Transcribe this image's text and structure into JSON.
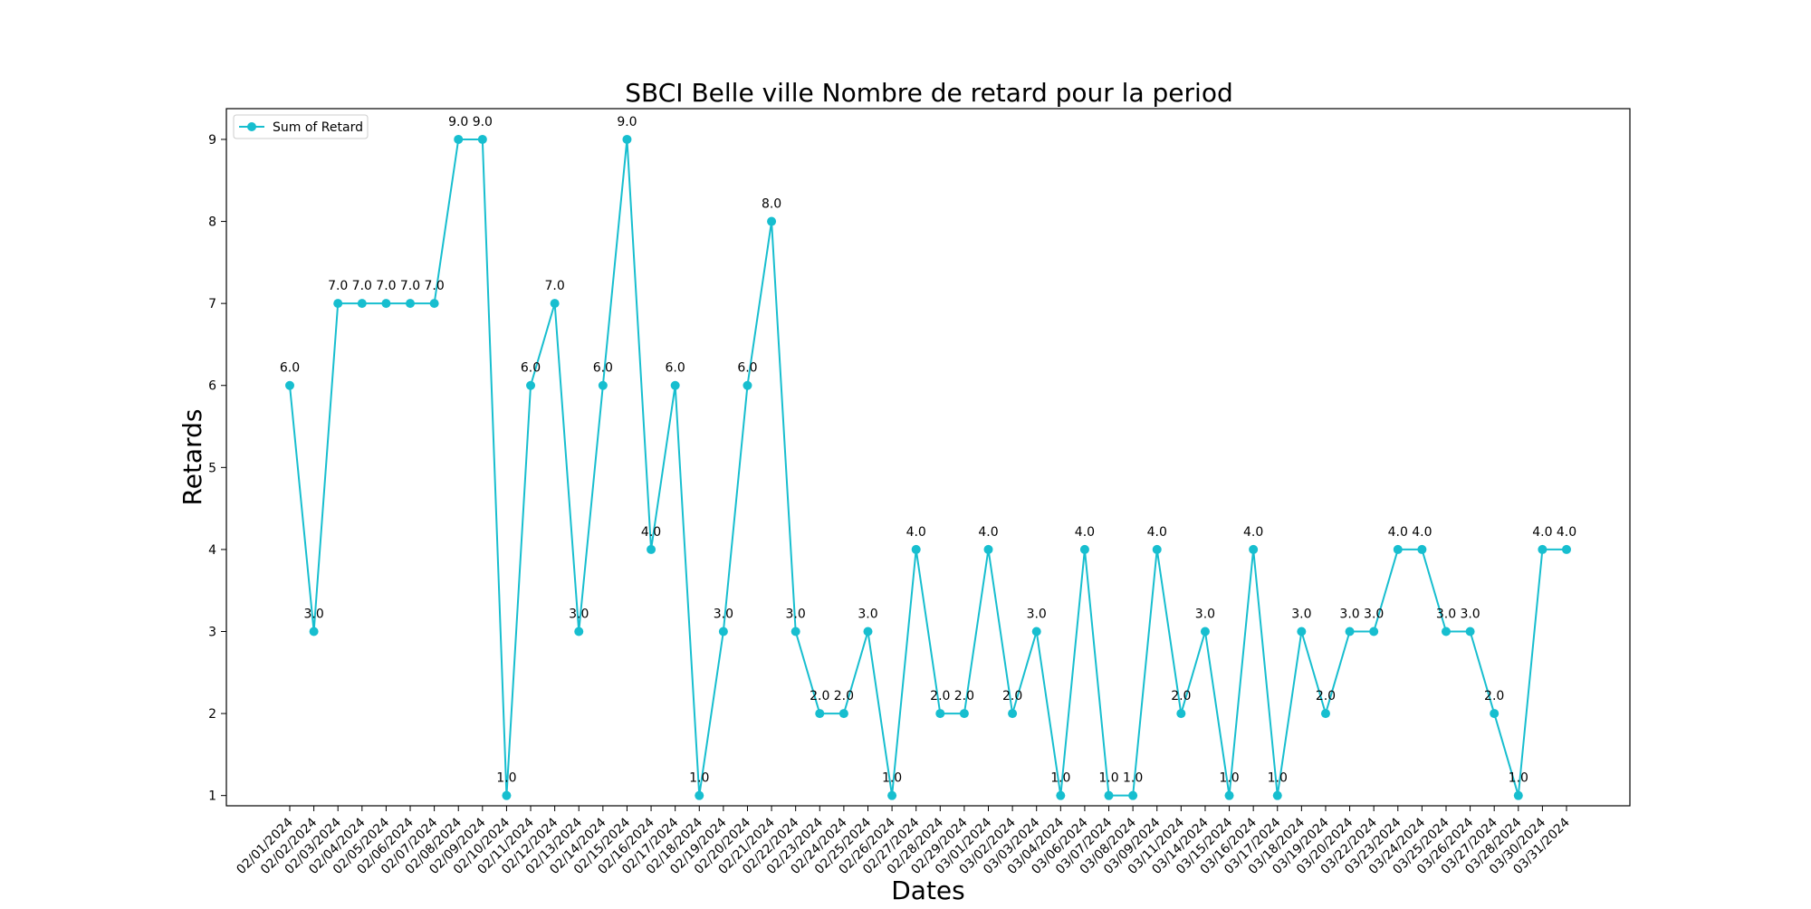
{
  "chart_data": {
    "type": "line",
    "title": "SBCI Belle ville Nombre de retard pour la period",
    "xlabel": "Dates",
    "ylabel": "Retards",
    "ylim": [
      0.875,
      9.375
    ],
    "yticks": [
      1,
      2,
      3,
      4,
      5,
      6,
      7,
      8,
      9
    ],
    "grid": false,
    "legend_position": "top-left",
    "colors": {
      "series": "#17becf",
      "axes": "#000000",
      "background": "#ffffff"
    },
    "categories": [
      "02/01/2024",
      "02/02/2024",
      "02/03/2024",
      "02/04/2024",
      "02/05/2024",
      "02/06/2024",
      "02/07/2024",
      "02/08/2024",
      "02/09/2024",
      "02/10/2024",
      "02/11/2024",
      "02/12/2024",
      "02/13/2024",
      "02/14/2024",
      "02/15/2024",
      "02/16/2024",
      "02/17/2024",
      "02/18/2024",
      "02/19/2024",
      "02/20/2024",
      "02/21/2024",
      "02/22/2024",
      "02/23/2024",
      "02/24/2024",
      "02/25/2024",
      "02/26/2024",
      "02/27/2024",
      "02/28/2024",
      "02/29/2024",
      "03/01/2024",
      "03/02/2024",
      "03/03/2024",
      "03/04/2024",
      "03/06/2024",
      "03/07/2024",
      "03/08/2024",
      "03/09/2024",
      "03/11/2024",
      "03/14/2024",
      "03/15/2024",
      "03/16/2024",
      "03/17/2024",
      "03/18/2024",
      "03/19/2024",
      "03/20/2024",
      "03/22/2024",
      "03/23/2024",
      "03/24/2024",
      "03/25/2024",
      "03/26/2024",
      "03/27/2024",
      "03/28/2024",
      "03/30/2024",
      "03/31/2024"
    ],
    "series": [
      {
        "name": "Sum of Retard",
        "values": [
          6,
          3,
          7,
          7,
          7,
          7,
          7,
          9,
          9,
          1,
          6,
          7,
          3,
          6,
          9,
          4,
          6,
          1,
          3,
          6,
          8,
          3,
          2,
          2,
          3,
          1,
          4,
          2,
          2,
          4,
          2,
          3,
          1,
          4,
          1,
          1,
          4,
          2,
          3,
          1,
          4,
          1,
          3,
          2,
          3,
          3,
          4,
          4,
          3,
          3,
          2,
          1,
          4,
          4
        ],
        "data_labels": [
          "6.0",
          "3.0",
          "7.0",
          "7.0",
          "7.0",
          "7.0",
          "7.0",
          "9.0",
          "9.0",
          "1.0",
          "6.0",
          "7.0",
          "3.0",
          "6.0",
          "9.0",
          "4.0",
          "6.0",
          "1.0",
          "3.0",
          "6.0",
          "8.0",
          "3.0",
          "2.0",
          "2.0",
          "3.0",
          "1.0",
          "4.0",
          "2.0",
          "2.0",
          "4.0",
          "2.0",
          "3.0",
          "1.0",
          "4.0",
          "1.0",
          "1.0",
          "4.0",
          "2.0",
          "3.0",
          "1.0",
          "4.0",
          "1.0",
          "3.0",
          "2.0",
          "3.0",
          "3.0",
          "4.0",
          "4.0",
          "3.0",
          "3.0",
          "2.0",
          "1.0",
          "4.0",
          "4.0"
        ]
      }
    ]
  }
}
